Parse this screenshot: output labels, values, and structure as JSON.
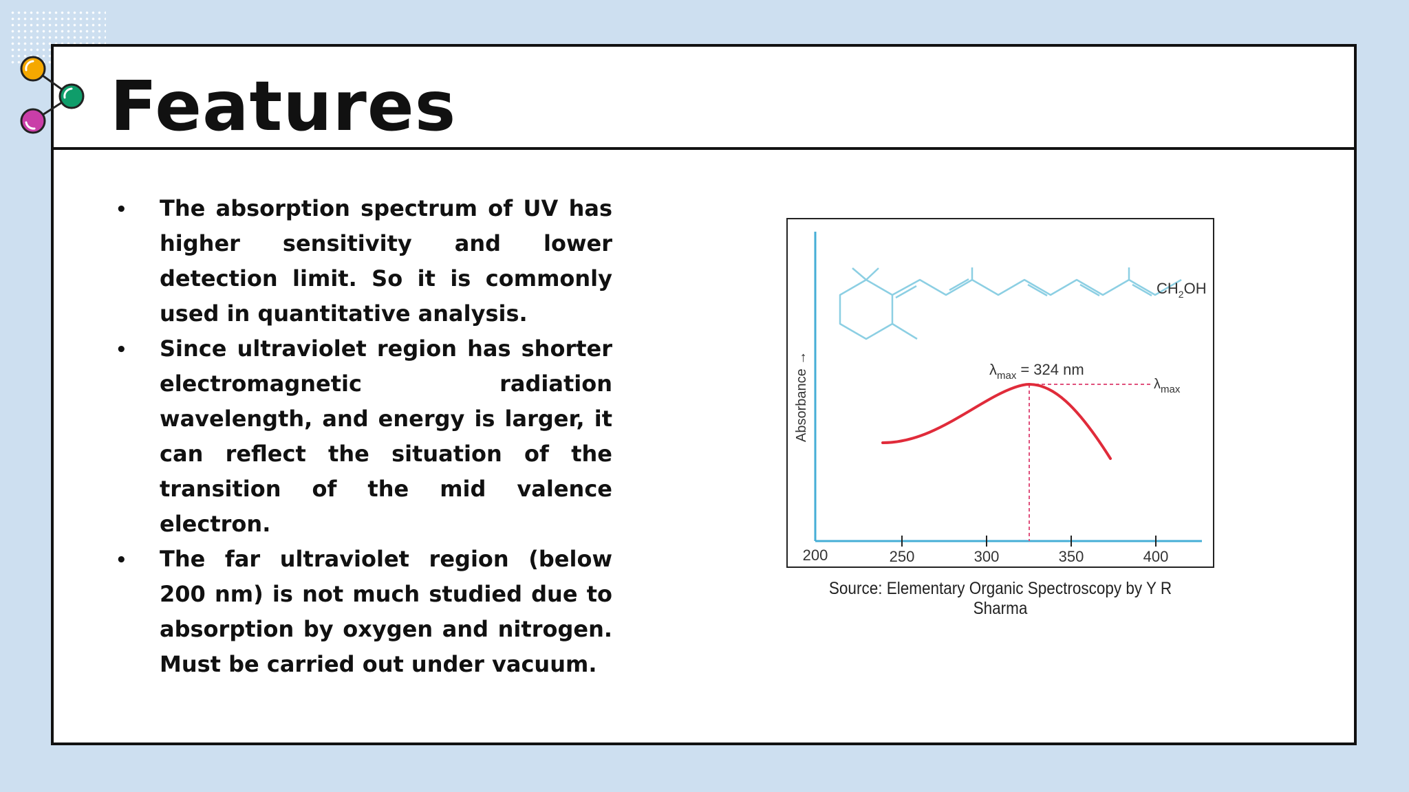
{
  "slide": {
    "title": "Features",
    "bullets": [
      "The absorption spectrum of UV has higher sensitivity and lower detection limit. So it is commonly used in quantitative analysis.",
      "Since ultraviolet region has shorter electromagnetic radiation wavelength, and energy is larger, it can reflect the situation of the transition of the mid valence electron.",
      "The far ultraviolet region (below 200 nm) is not much studied due to absorption by oxygen and nitrogen. Must be carried out under vacuum."
    ],
    "caption": "Source: Elementary Organic Spectroscopy by Y R Sharma"
  },
  "figure": {
    "y_axis_label": "Absorbance →",
    "x_tick_labels": [
      "200",
      "250",
      "300",
      "350",
      "400"
    ],
    "peak_symbol": "λ",
    "peak_subscript": "max",
    "peak_value": "= 324 nm",
    "right_marker_symbol": "λ",
    "right_marker_subscript": "max",
    "molecule_label_prefix": "CH",
    "molecule_label_subscript": "2",
    "molecule_label_suffix": "OH"
  },
  "colors": {
    "axis": "#45aed6",
    "curve": "#e02b3a",
    "structure": "#8ccfe3",
    "peak_line": "#e0507c",
    "icon_orange": "#f5a800",
    "icon_green": "#0f9d6a",
    "icon_magenta": "#c93ea8"
  }
}
